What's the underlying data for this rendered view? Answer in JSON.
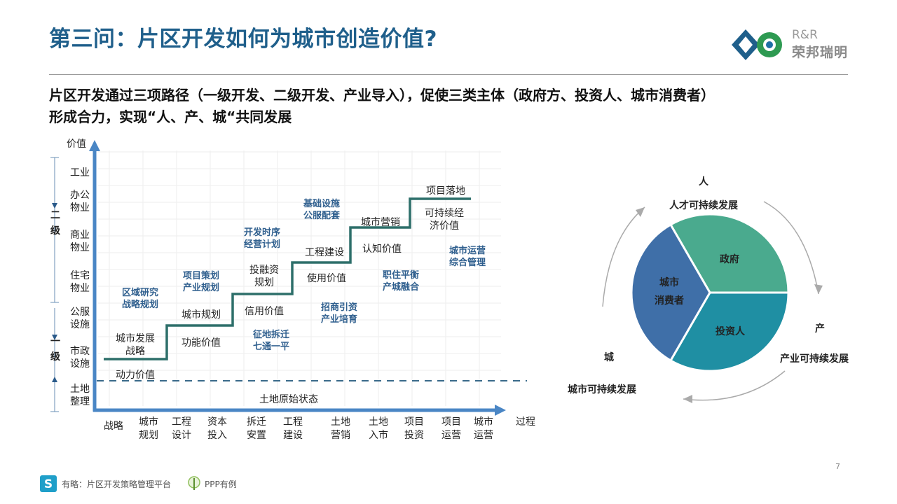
{
  "header": {
    "title": "第三问：片区开发如何为城市创造价值?",
    "brand_latin": "R&R",
    "brand_cn": "荣邦瑞明"
  },
  "subtitle": {
    "line1": "片区开发通过三项路径（一级开发、二级开发、产业导入），促使三类主体（政府方、投资人、城市消费者）",
    "line2": "形成合力，实现“人、产、城“共同发展"
  },
  "staircase": {
    "y_axis_label": "价值",
    "x_axis_label": "过程",
    "y_ticks": [
      {
        "text": "工业",
        "level": 1
      },
      {
        "text": "办公\n物业",
        "level": 2
      },
      {
        "text": "商业\n物业",
        "level": 3
      },
      {
        "text": "住宅\n物业",
        "level": 4
      },
      {
        "text": "公服\n设施",
        "level": 5
      },
      {
        "text": "市政\n设施",
        "level": 6
      },
      {
        "text": "土地\n整理",
        "level": 7
      }
    ],
    "groups": [
      {
        "text": "二\n级"
      },
      {
        "text": "一\n级"
      }
    ],
    "x_ticks": [
      "战略",
      "城市\n规划",
      "工程\n设计",
      "资本\n投入",
      "拆迁\n安置",
      "工程\n建设",
      "土地\n营销",
      "土地\n入市",
      "项目\n投资",
      "项目\n运营",
      "城市\n运营"
    ],
    "baseline_label": "土地原始状态",
    "steps": [
      {
        "above": "城市发展\n战略",
        "below": "动力价值",
        "blue": "区域研究\n战略规划"
      },
      {
        "above": "城市规划",
        "below": "功能价值",
        "blue": "项目策划\n产业规划"
      },
      {
        "above": "投融资\n规划",
        "below": "信用价值",
        "blue": "开发时序\n经营计划",
        "blue2": "征地拆迁\n七通一平"
      },
      {
        "above": "工程建设",
        "below": "使用价值",
        "blue": "基础设施\n公服配套",
        "blue2": "招商引资\n产业培育"
      },
      {
        "above": "城市营销",
        "below": "认知价值",
        "blue2": "职住平衡\n产城融合"
      },
      {
        "above": "项目落地",
        "below": "可持续经\n济价值",
        "blue2": "城市运营\n综合管理"
      }
    ]
  },
  "cycle": {
    "top_char": "人",
    "top_label": "人才可持续发展",
    "right_char": "产",
    "right_label": "产业可持续发展",
    "left_char": "城",
    "left_label": "城市可持续发展",
    "segments": [
      {
        "label": "政府",
        "color": "#4aaa8e"
      },
      {
        "label": "投资人",
        "color": "#1f8fa3"
      },
      {
        "label": "城市\n消费者",
        "color": "#3f6fa8"
      }
    ]
  },
  "footer": {
    "platform": "有略：片区开发策略管理平台",
    "ppp": "PPP有例",
    "page": "7"
  }
}
